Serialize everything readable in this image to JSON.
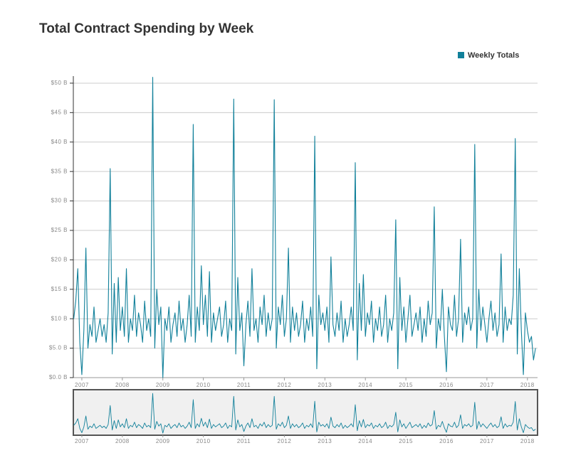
{
  "chart_data": {
    "type": "line",
    "title": "Total Contract Spending by Week",
    "legend": "top-right",
    "grid": true,
    "xlim": [
      2006.79,
      2018.25
    ],
    "xticks": [
      2007,
      2008,
      2009,
      2010,
      2011,
      2012,
      2013,
      2014,
      2015,
      2016,
      2017,
      2018
    ],
    "ylim": [
      0,
      51.2
    ],
    "yticks": [
      {
        "value": 0,
        "label": "$0.0 B"
      },
      {
        "value": 5,
        "label": "$5.0 B"
      },
      {
        "value": 10,
        "label": "$10 B"
      },
      {
        "value": 15,
        "label": "$15 B"
      },
      {
        "value": 20,
        "label": "$20 B"
      },
      {
        "value": 25,
        "label": "$25 B"
      },
      {
        "value": 30,
        "label": "$30 B"
      },
      {
        "value": 35,
        "label": "$35 B"
      },
      {
        "value": 40,
        "label": "$40 B"
      },
      {
        "value": 45,
        "label": "$45 B"
      },
      {
        "value": 50,
        "label": "$50 B"
      }
    ],
    "x": [
      2006.8,
      2006.85,
      2006.9,
      2006.95,
      2007,
      2007.05,
      2007.1,
      2007.15,
      2007.2,
      2007.25,
      2007.3,
      2007.35,
      2007.4,
      2007.45,
      2007.5,
      2007.55,
      2007.6,
      2007.65,
      2007.7,
      2007.75,
      2007.8,
      2007.85,
      2007.9,
      2007.95,
      2008,
      2008.05,
      2008.1,
      2008.15,
      2008.2,
      2008.25,
      2008.3,
      2008.35,
      2008.4,
      2008.45,
      2008.5,
      2008.55,
      2008.6,
      2008.65,
      2008.7,
      2008.75,
      2008.8,
      2008.85,
      2008.9,
      2008.95,
      2009,
      2009.05,
      2009.1,
      2009.15,
      2009.2,
      2009.25,
      2009.3,
      2009.35,
      2009.4,
      2009.45,
      2009.5,
      2009.55,
      2009.6,
      2009.65,
      2009.7,
      2009.75,
      2009.8,
      2009.85,
      2009.9,
      2009.95,
      2010,
      2010.05,
      2010.1,
      2010.15,
      2010.2,
      2010.25,
      2010.3,
      2010.35,
      2010.4,
      2010.45,
      2010.5,
      2010.55,
      2010.6,
      2010.65,
      2010.7,
      2010.75,
      2010.8,
      2010.85,
      2010.9,
      2010.95,
      2011,
      2011.05,
      2011.1,
      2011.15,
      2011.2,
      2011.25,
      2011.3,
      2011.35,
      2011.4,
      2011.45,
      2011.5,
      2011.55,
      2011.6,
      2011.65,
      2011.7,
      2011.75,
      2011.8,
      2011.85,
      2011.9,
      2011.95,
      2012,
      2012.05,
      2012.1,
      2012.15,
      2012.2,
      2012.25,
      2012.3,
      2012.35,
      2012.4,
      2012.45,
      2012.5,
      2012.55,
      2012.6,
      2012.65,
      2012.7,
      2012.75,
      2012.8,
      2012.85,
      2012.9,
      2012.95,
      2013,
      2013.05,
      2013.1,
      2013.15,
      2013.2,
      2013.25,
      2013.3,
      2013.35,
      2013.4,
      2013.45,
      2013.5,
      2013.55,
      2013.6,
      2013.65,
      2013.7,
      2013.75,
      2013.8,
      2013.85,
      2013.9,
      2013.95,
      2014,
      2014.05,
      2014.1,
      2014.15,
      2014.2,
      2014.25,
      2014.3,
      2014.35,
      2014.4,
      2014.45,
      2014.5,
      2014.55,
      2014.6,
      2014.65,
      2014.7,
      2014.75,
      2014.8,
      2014.85,
      2014.9,
      2014.95,
      2015,
      2015.05,
      2015.1,
      2015.15,
      2015.2,
      2015.25,
      2015.3,
      2015.35,
      2015.4,
      2015.45,
      2015.5,
      2015.55,
      2015.6,
      2015.65,
      2015.7,
      2015.75,
      2015.8,
      2015.85,
      2015.9,
      2015.95,
      2016,
      2016.05,
      2016.1,
      2016.15,
      2016.2,
      2016.25,
      2016.3,
      2016.35,
      2016.4,
      2016.45,
      2016.5,
      2016.55,
      2016.6,
      2016.65,
      2016.7,
      2016.75,
      2016.8,
      2016.85,
      2016.9,
      2016.95,
      2017,
      2017.05,
      2017.1,
      2017.15,
      2017.2,
      2017.25,
      2017.3,
      2017.35,
      2017.4,
      2017.45,
      2017.5,
      2017.55,
      2017.6,
      2017.65,
      2017.7,
      2017.75,
      2017.8,
      2017.85,
      2017.9,
      2017.95,
      2018,
      2018.05,
      2018.1,
      2018.15,
      2018.2
    ],
    "series": [
      {
        "name": "Weekly Totals",
        "color": "#11809a",
        "values": [
          10,
          13,
          18.5,
          6,
          0.5,
          8,
          22,
          5,
          9,
          7,
          12,
          6,
          8,
          10,
          7,
          9,
          6,
          11,
          35.5,
          4,
          16,
          6,
          17,
          8,
          12,
          7,
          18.5,
          6,
          10,
          8,
          14,
          7,
          11,
          9,
          6,
          13,
          8,
          10,
          7,
          51,
          5,
          15,
          9,
          12,
          0,
          10,
          8,
          12,
          6,
          9,
          11,
          7,
          13,
          8,
          10,
          6,
          9,
          14,
          7,
          43,
          6,
          12,
          8,
          19,
          9,
          14,
          7,
          18,
          6,
          11,
          8,
          10,
          12,
          7,
          9,
          13,
          6,
          10,
          8,
          47.3,
          4,
          17,
          8,
          11,
          2,
          9,
          13,
          7,
          18.5,
          8,
          10,
          6,
          12,
          9,
          14,
          7,
          11,
          8,
          10,
          47.2,
          5,
          12,
          9,
          14,
          7,
          10,
          22,
          6,
          12,
          8,
          11,
          7,
          9,
          13,
          6,
          10,
          8,
          12,
          7,
          41,
          1.5,
          14,
          9,
          11,
          8,
          12,
          6,
          20.5,
          9,
          7,
          11,
          8,
          13,
          6,
          10,
          7,
          9,
          12,
          8,
          36.5,
          3,
          16,
          8,
          17.5,
          7,
          11,
          9,
          13,
          6,
          10,
          8,
          12,
          7,
          9,
          14,
          6,
          10,
          8,
          11,
          26.8,
          1.5,
          17,
          8,
          12,
          6,
          10,
          14,
          7,
          9,
          11,
          8,
          12,
          6,
          10,
          7,
          13,
          9,
          11,
          29,
          5,
          10,
          8,
          15,
          7,
          1,
          12,
          9,
          8,
          14,
          7,
          10,
          23.5,
          6,
          11,
          9,
          12,
          8,
          10,
          39.6,
          5,
          15,
          8,
          12,
          9,
          6,
          10,
          13,
          8,
          11,
          7,
          9,
          21,
          6,
          12,
          8,
          10,
          9,
          14,
          40.6,
          4,
          18.5,
          8,
          0.5,
          11,
          8,
          6,
          7,
          3,
          5
        ]
      }
    ]
  }
}
